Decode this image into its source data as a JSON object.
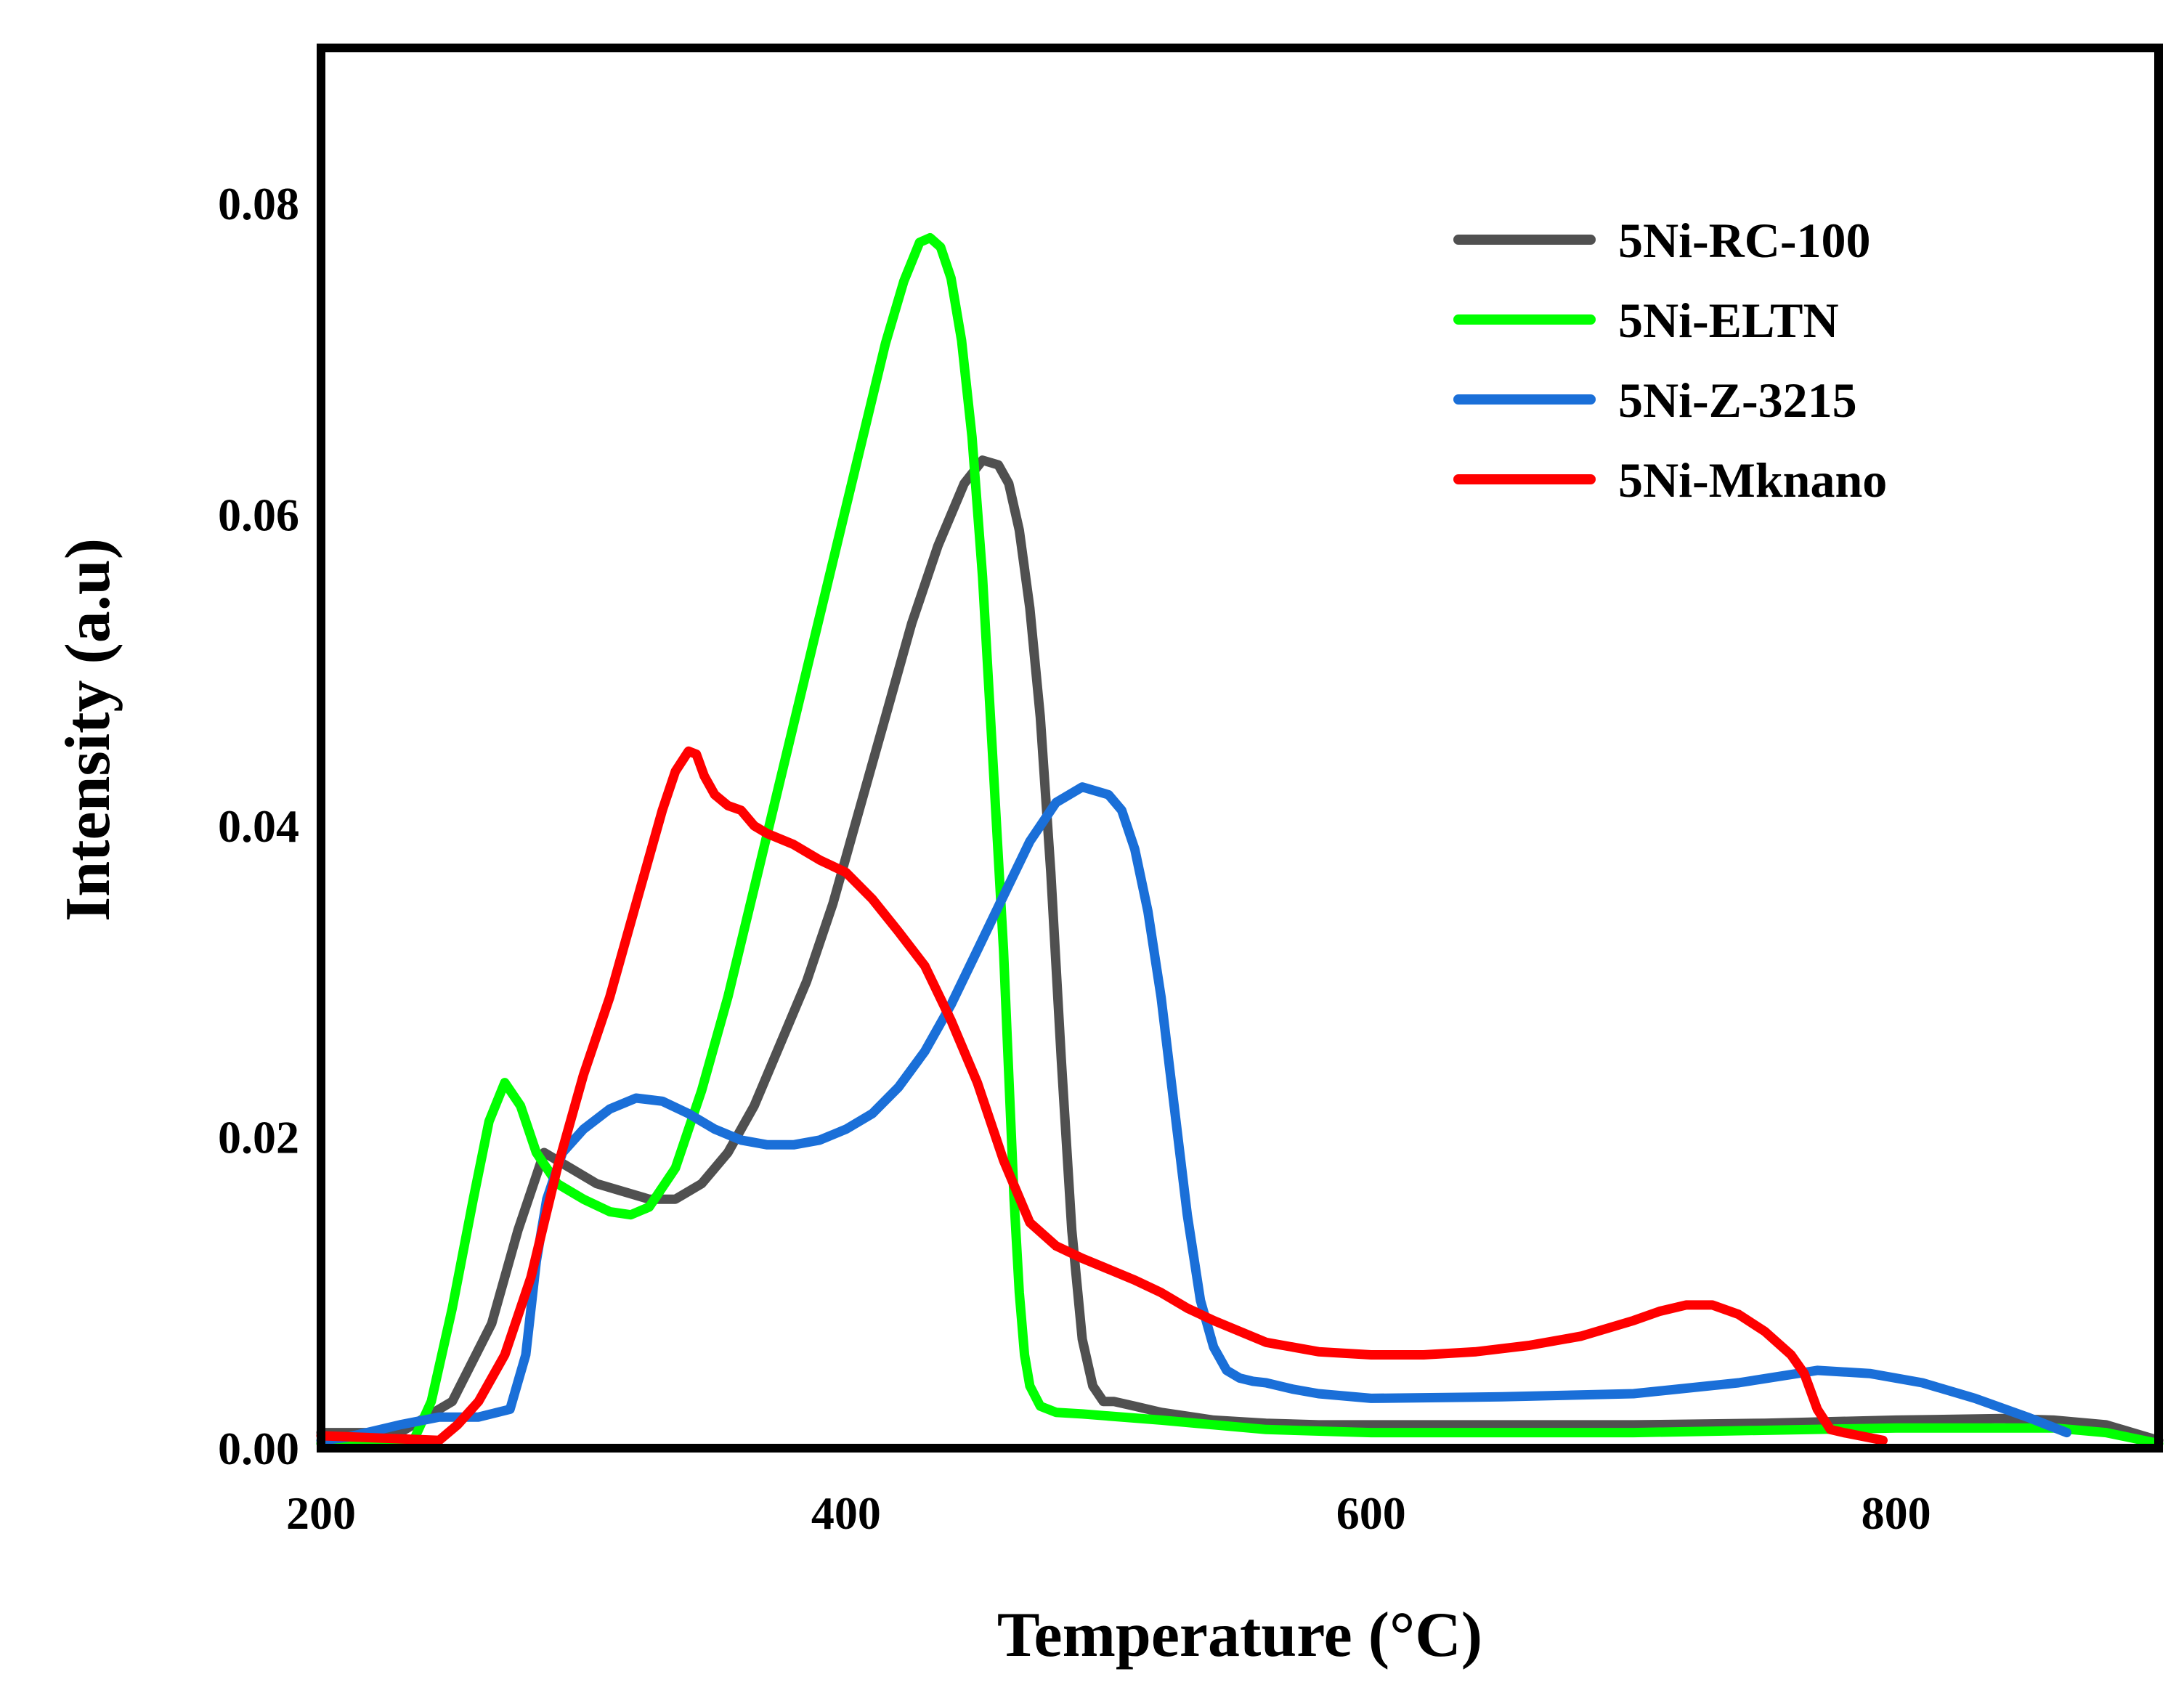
{
  "chart_data": {
    "type": "line",
    "title": "",
    "xlabel": "Temperature (°C)",
    "ylabel": "Intensity (a.u)",
    "xlim": [
      200,
      900
    ],
    "ylim": [
      0,
      0.09
    ],
    "xticks": [
      200,
      400,
      600,
      800
    ],
    "xtick_labels": [
      "200",
      "400",
      "600",
      "800"
    ],
    "yticks": [
      0,
      0.02,
      0.04,
      0.06,
      0.08
    ],
    "ytick_labels": [
      "0.00",
      "0.02",
      "0.04",
      "0.06",
      "0.08"
    ],
    "grid": false,
    "legend_position": "top-right",
    "series": [
      {
        "name": "5Ni-RC-100",
        "color": "#505050",
        "x": [
          200,
          230,
          250,
          265,
          275,
          285,
          295,
          305,
          315,
          325,
          335,
          345,
          355,
          365,
          375,
          385,
          395,
          405,
          415,
          425,
          435,
          445,
          452,
          458,
          462,
          466,
          470,
          474,
          478,
          482,
          486,
          490,
          494,
          498,
          502,
          510,
          520,
          540,
          560,
          580,
          600,
          650,
          700,
          750,
          800,
          840,
          860,
          880,
          890,
          900
        ],
        "y": [
          0.001,
          0.001,
          0.003,
          0.008,
          0.014,
          0.019,
          0.018,
          0.017,
          0.0165,
          0.016,
          0.016,
          0.017,
          0.019,
          0.022,
          0.026,
          0.03,
          0.035,
          0.041,
          0.047,
          0.053,
          0.058,
          0.062,
          0.0635,
          0.0632,
          0.062,
          0.059,
          0.054,
          0.047,
          0.037,
          0.025,
          0.014,
          0.007,
          0.004,
          0.003,
          0.003,
          0.0027,
          0.0023,
          0.0018,
          0.0016,
          0.0015,
          0.0015,
          0.0015,
          0.0015,
          0.0016,
          0.0018,
          0.0019,
          0.0018,
          0.0015,
          0.001,
          0.0005
        ]
      },
      {
        "name": "5Ni-ELTN",
        "color": "#00ff00",
        "x": [
          200,
          235,
          242,
          250,
          258,
          264,
          270,
          276,
          282,
          290,
          300,
          310,
          318,
          325,
          335,
          345,
          355,
          365,
          375,
          385,
          395,
          405,
          415,
          422,
          428,
          432,
          436,
          440,
          444,
          448,
          452,
          456,
          460,
          462,
          464,
          466,
          468,
          470,
          474,
          480,
          490,
          520,
          560,
          600,
          700,
          800,
          860,
          880,
          900
        ],
        "y": [
          0.0003,
          0.0004,
          0.003,
          0.009,
          0.016,
          0.021,
          0.0235,
          0.022,
          0.019,
          0.017,
          0.016,
          0.0152,
          0.015,
          0.0155,
          0.018,
          0.023,
          0.029,
          0.036,
          0.043,
          0.05,
          0.057,
          0.064,
          0.071,
          0.075,
          0.0775,
          0.0778,
          0.0772,
          0.0752,
          0.0712,
          0.065,
          0.056,
          0.044,
          0.032,
          0.024,
          0.016,
          0.01,
          0.006,
          0.004,
          0.0027,
          0.0023,
          0.0022,
          0.0018,
          0.0012,
          0.001,
          0.001,
          0.0013,
          0.0013,
          0.001,
          0.0003
        ]
      },
      {
        "name": "5Ni-Z-3215",
        "color": "#1a6fd8",
        "x": [
          200,
          210,
          230,
          245,
          260,
          272,
          278,
          282,
          286,
          292,
          300,
          310,
          320,
          330,
          340,
          350,
          360,
          370,
          380,
          390,
          400,
          410,
          420,
          430,
          440,
          450,
          460,
          470,
          480,
          490,
          500,
          505,
          510,
          515,
          520,
          525,
          530,
          535,
          540,
          545,
          550,
          555,
          560,
          570,
          580,
          600,
          650,
          700,
          740,
          770,
          790,
          810,
          830,
          850,
          865
        ],
        "y": [
          0.0005,
          0.0007,
          0.0015,
          0.002,
          0.002,
          0.0025,
          0.006,
          0.012,
          0.016,
          0.019,
          0.0205,
          0.0218,
          0.0225,
          0.0223,
          0.0215,
          0.0205,
          0.0198,
          0.0195,
          0.0195,
          0.0198,
          0.0205,
          0.0215,
          0.0232,
          0.0255,
          0.0285,
          0.032,
          0.0355,
          0.039,
          0.0415,
          0.0425,
          0.042,
          0.041,
          0.0385,
          0.0345,
          0.029,
          0.022,
          0.015,
          0.0095,
          0.0065,
          0.005,
          0.0045,
          0.0043,
          0.0042,
          0.0038,
          0.0035,
          0.0032,
          0.0033,
          0.0035,
          0.0042,
          0.005,
          0.0048,
          0.0042,
          0.0032,
          0.002,
          0.001
        ]
      },
      {
        "name": "5Ni-Mknano",
        "color": "#ff0000",
        "x": [
          200,
          215,
          230,
          245,
          252,
          260,
          270,
          280,
          290,
          300,
          310,
          320,
          330,
          335,
          340,
          343,
          346,
          350,
          355,
          360,
          365,
          370,
          380,
          390,
          400,
          410,
          420,
          430,
          440,
          450,
          460,
          470,
          480,
          490,
          500,
          510,
          520,
          530,
          540,
          550,
          560,
          580,
          600,
          620,
          640,
          660,
          680,
          700,
          710,
          720,
          730,
          740,
          750,
          760,
          765,
          770,
          775,
          780,
          795
        ],
        "y": [
          0.0008,
          0.0007,
          0.0006,
          0.0005,
          0.0015,
          0.003,
          0.006,
          0.011,
          0.018,
          0.024,
          0.029,
          0.035,
          0.041,
          0.0435,
          0.0448,
          0.0446,
          0.0432,
          0.042,
          0.0413,
          0.041,
          0.04,
          0.0395,
          0.0388,
          0.0378,
          0.037,
          0.0353,
          0.0332,
          0.031,
          0.0275,
          0.0235,
          0.0185,
          0.0145,
          0.013,
          0.0122,
          0.0115,
          0.0108,
          0.01,
          0.009,
          0.0082,
          0.0075,
          0.0068,
          0.0062,
          0.006,
          0.006,
          0.0062,
          0.0066,
          0.0072,
          0.0082,
          0.0088,
          0.0092,
          0.0092,
          0.0086,
          0.0075,
          0.006,
          0.0048,
          0.0025,
          0.0012,
          0.001,
          0.0005
        ]
      }
    ]
  }
}
